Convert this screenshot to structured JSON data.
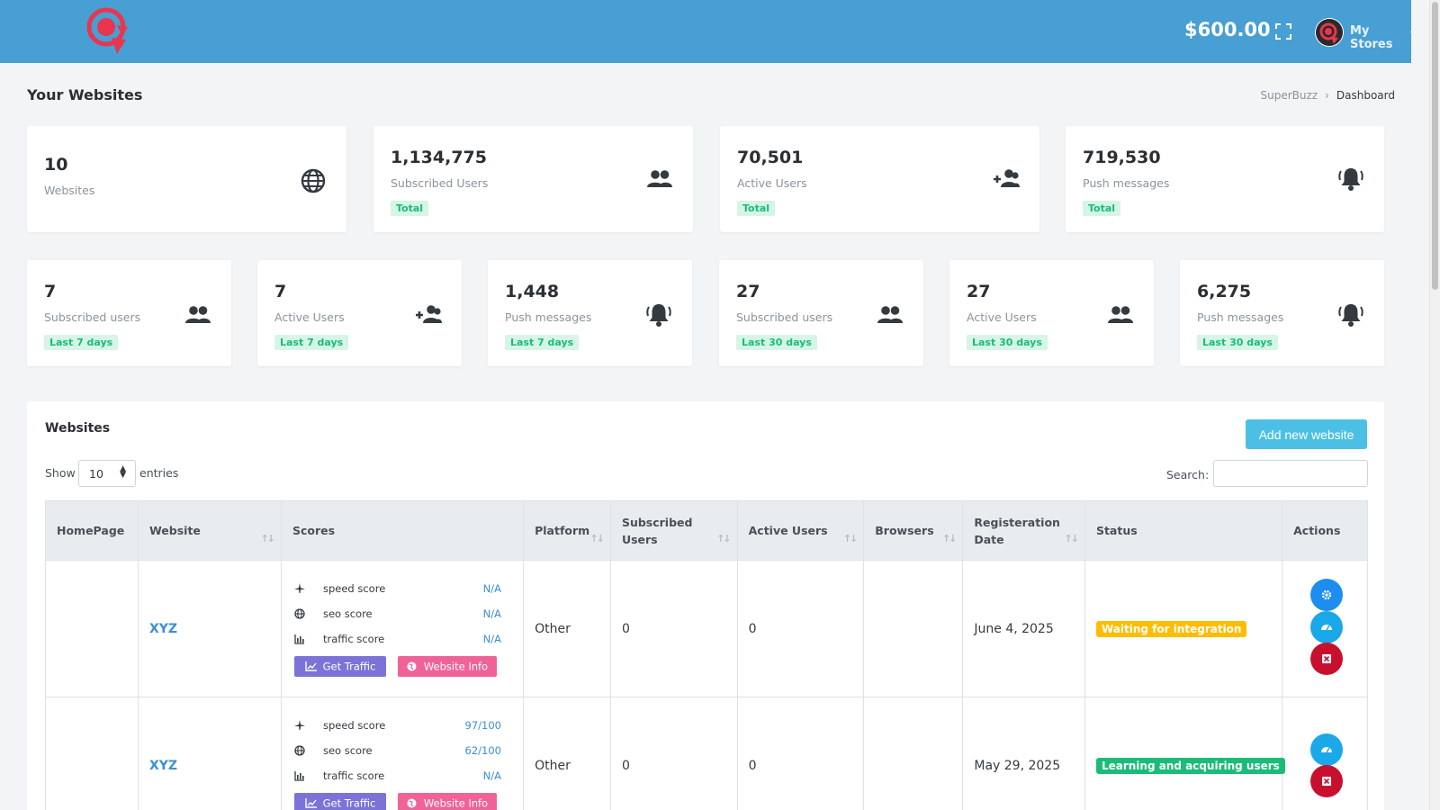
{
  "header": {
    "balance": "$600.00",
    "store_menu": "My Stores",
    "chevron": "⌄"
  },
  "page": {
    "title": "Your Websites",
    "breadcrumb": [
      "SuperBuzz",
      "Dashboard"
    ],
    "breadcrumb_sep": "›"
  },
  "summary_cards": [
    {
      "value": "10",
      "label": "Websites",
      "badge": "",
      "icon": "globe-icon"
    },
    {
      "value": "1,134,775",
      "label": "Subscribed Users",
      "badge": "Total",
      "icon": "users-icon"
    },
    {
      "value": "70,501",
      "label": "Active Users",
      "badge": "Total",
      "icon": "user-plus-icon"
    },
    {
      "value": "719,530",
      "label": "Push messages",
      "badge": "Total",
      "icon": "bell-icon"
    }
  ],
  "period_cards": [
    {
      "value": "7",
      "label": "Subscribed users",
      "badge": "Last 7 days",
      "icon": "users-icon"
    },
    {
      "value": "7",
      "label": "Active Users",
      "badge": "Last 7 days",
      "icon": "user-plus-icon"
    },
    {
      "value": "1,448",
      "label": "Push messages",
      "badge": "Last 7 days",
      "icon": "bell-icon"
    },
    {
      "value": "27",
      "label": "Subscribed users",
      "badge": "Last 30 days",
      "icon": "users-icon"
    },
    {
      "value": "27",
      "label": "Active Users",
      "badge": "Last 30 days",
      "icon": "users-icon"
    },
    {
      "value": "6,275",
      "label": "Push messages",
      "badge": "Last 30 days",
      "icon": "bell-icon"
    }
  ],
  "websites_panel": {
    "title": "Websites",
    "add_button": "Add new website",
    "show_label": "Show",
    "entries_value": "10",
    "entries_label": "entries",
    "search_label": "Search:",
    "search_value": "",
    "columns": [
      "HomePage",
      "Website",
      "Scores",
      "Platform",
      "Subscribed Users",
      "Active Users",
      "Browsers",
      "Registeration Date",
      "Status",
      "Actions"
    ],
    "sort_glyph": "↑↓",
    "score_labels": [
      "speed score",
      "seo score",
      "traffic score"
    ],
    "traffic_button": "Get Traffic",
    "info_button": "Website Info",
    "rows": [
      {
        "website": "XYZ",
        "scores": [
          "N/A",
          "N/A",
          "N/A"
        ],
        "platform": "Other",
        "subscribed": "0",
        "active": "0",
        "browsers": "",
        "date": "June 4, 2025",
        "status": "Waiting for integration",
        "status_color": "#ffbc00",
        "actions": [
          "settings-icon",
          "dashboard-icon",
          "delete-icon"
        ]
      },
      {
        "website": "XYZ",
        "scores": [
          "97/100",
          "62/100",
          "N/A"
        ],
        "platform": "Other",
        "subscribed": "0",
        "active": "0",
        "browsers": "",
        "date": "May 29, 2025",
        "status": "Learning and acquiring users",
        "status_color": "#1abc77",
        "actions": [
          "dashboard-icon",
          "delete-icon"
        ]
      }
    ]
  },
  "colors": {
    "topbar": "#479fd4",
    "brand_red": "#e8364f",
    "badge_green": "#1abc77",
    "add_button": "#4cc0e4"
  }
}
